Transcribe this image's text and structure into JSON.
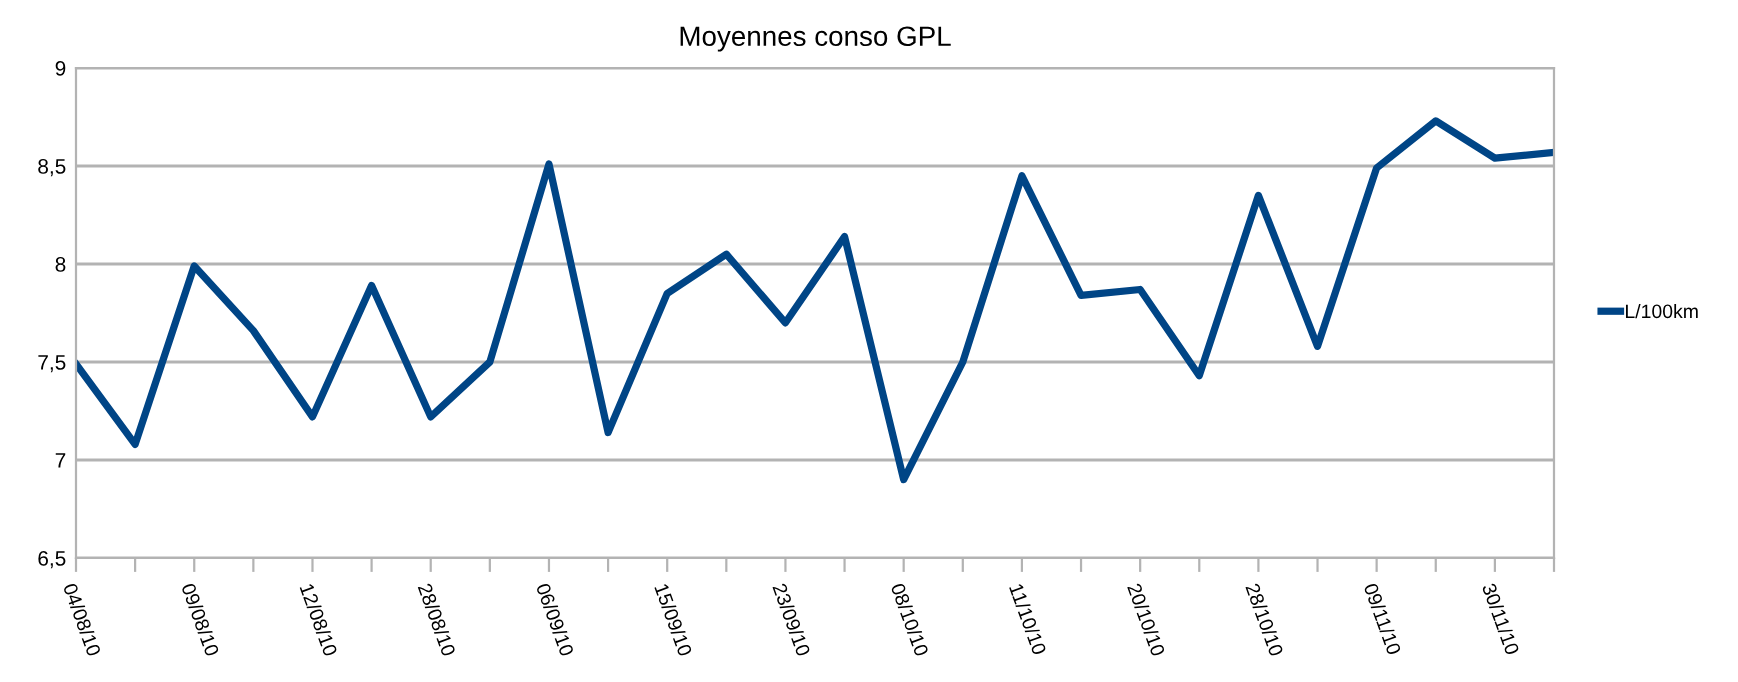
{
  "chart_data": {
    "type": "line",
    "title": "Moyennes conso GPL",
    "categories": [
      "04/08/10",
      null,
      "09/08/10",
      null,
      "12/08/10",
      null,
      "28/08/10",
      null,
      "06/09/10",
      null,
      "15/09/10",
      null,
      "23/09/10",
      null,
      "08/10/10",
      null,
      "11/10/10",
      null,
      "20/10/10",
      null,
      "28/10/10",
      null,
      "09/11/10",
      null,
      "30/11/10",
      null
    ],
    "series": [
      {
        "name": "L/100km",
        "color": "#004586",
        "values": [
          7.49,
          7.08,
          7.99,
          7.66,
          7.22,
          7.89,
          7.22,
          7.5,
          8.51,
          7.14,
          7.85,
          8.05,
          7.7,
          8.14,
          6.9,
          7.5,
          8.45,
          7.84,
          7.87,
          7.43,
          8.35,
          7.58,
          8.49,
          8.73,
          8.54,
          8.57
        ]
      }
    ],
    "ylim": [
      6.5,
      9
    ],
    "yticks": [
      {
        "value": 6.5,
        "label": "6,5"
      },
      7,
      {
        "value": 7.5,
        "label": "7,5"
      },
      8,
      {
        "value": 8.5,
        "label": "8,5"
      },
      9
    ],
    "grid": "y",
    "legend": "right",
    "marker": "none",
    "line_style": "solid"
  }
}
